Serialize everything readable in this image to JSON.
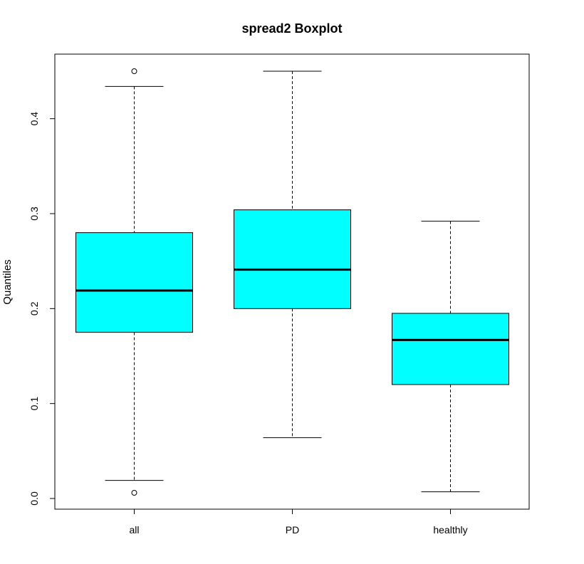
{
  "chart_data": {
    "type": "box",
    "title": "spread2 Boxplot",
    "xlabel": "",
    "ylabel": "Quantiles",
    "ylim": [
      0.0,
      0.45
    ],
    "yticks": [
      0.0,
      0.1,
      0.2,
      0.3,
      0.4
    ],
    "ytick_labels": [
      "0.0",
      "0.1",
      "0.2",
      "0.3",
      "0.4"
    ],
    "categories": [
      "all",
      "PD",
      "healthly"
    ],
    "box_color": "#00FFFF",
    "boxes": [
      {
        "category": "all",
        "whisker_low": 0.019,
        "q1": 0.175,
        "median": 0.219,
        "q3": 0.28,
        "whisker_high": 0.434,
        "outliers": [
          0.45,
          0.006
        ]
      },
      {
        "category": "PD",
        "whisker_low": 0.064,
        "q1": 0.2,
        "median": 0.241,
        "q3": 0.304,
        "whisker_high": 0.45,
        "outliers": []
      },
      {
        "category": "healthly",
        "whisker_low": 0.007,
        "q1": 0.12,
        "median": 0.167,
        "q3": 0.195,
        "whisker_high": 0.292,
        "outliers": []
      }
    ]
  }
}
